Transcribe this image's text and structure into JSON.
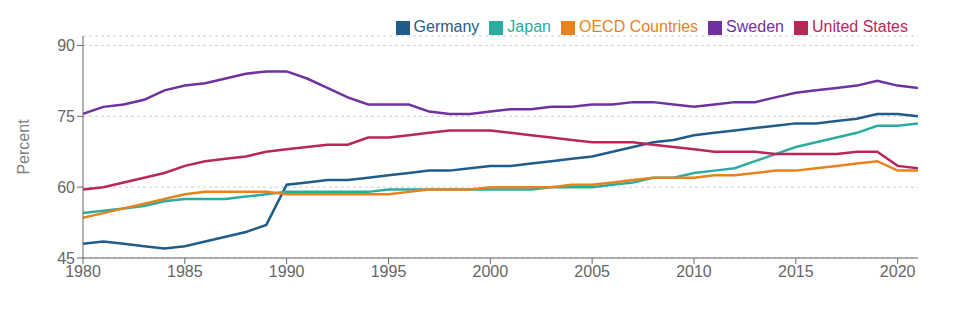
{
  "chart_data": {
    "type": "line",
    "ylabel": "Percent",
    "x": [
      1980,
      1981,
      1982,
      1983,
      1984,
      1985,
      1986,
      1987,
      1988,
      1989,
      1990,
      1991,
      1992,
      1993,
      1994,
      1995,
      1996,
      1997,
      1998,
      1999,
      2000,
      2001,
      2002,
      2003,
      2004,
      2005,
      2006,
      2007,
      2008,
      2009,
      2010,
      2011,
      2012,
      2013,
      2014,
      2015,
      2016,
      2017,
      2018,
      2019,
      2020,
      2021
    ],
    "series": [
      {
        "name": "Germany",
        "color": "#1f5c8b",
        "values": [
          48.0,
          48.5,
          48.0,
          47.5,
          47.0,
          47.5,
          48.5,
          49.5,
          50.5,
          52.0,
          60.5,
          61.0,
          61.5,
          61.5,
          62.0,
          62.5,
          63.0,
          63.5,
          63.5,
          64.0,
          64.5,
          64.5,
          65.0,
          65.5,
          66.0,
          66.5,
          67.5,
          68.5,
          69.5,
          70.0,
          71.0,
          71.5,
          72.0,
          72.5,
          73.0,
          73.5,
          73.5,
          74.0,
          74.5,
          75.5,
          75.5,
          75.0
        ]
      },
      {
        "name": "Japan",
        "color": "#2aada0",
        "values": [
          54.5,
          55.0,
          55.5,
          56.0,
          57.0,
          57.5,
          57.5,
          57.5,
          58.0,
          58.5,
          59.0,
          59.0,
          59.0,
          59.0,
          59.0,
          59.5,
          59.5,
          59.5,
          59.5,
          59.5,
          59.5,
          59.5,
          59.5,
          60.0,
          60.0,
          60.0,
          60.5,
          61.0,
          62.0,
          62.0,
          63.0,
          63.5,
          64.0,
          65.5,
          67.0,
          68.5,
          69.5,
          70.5,
          71.5,
          73.0,
          73.0,
          73.5
        ]
      },
      {
        "name": "Sweden",
        "color": "#7030a0",
        "values": [
          75.5,
          77.0,
          77.5,
          78.5,
          80.5,
          81.5,
          82.0,
          83.0,
          84.0,
          84.5,
          84.5,
          83.0,
          81.0,
          79.0,
          77.5,
          77.5,
          77.5,
          76.0,
          75.5,
          75.5,
          76.0,
          76.5,
          76.5,
          77.0,
          77.0,
          77.5,
          77.5,
          78.0,
          78.0,
          77.5,
          77.0,
          77.5,
          78.0,
          78.0,
          79.0,
          80.0,
          80.5,
          81.0,
          81.5,
          82.5,
          81.5,
          81.0
        ]
      },
      {
        "name": "United States",
        "color": "#b8265a",
        "values": [
          59.5,
          60.0,
          61.0,
          62.0,
          63.0,
          64.5,
          65.5,
          66.0,
          66.5,
          67.5,
          68.0,
          68.5,
          69.0,
          69.0,
          70.5,
          70.5,
          71.0,
          71.5,
          72.0,
          72.0,
          72.0,
          71.5,
          71.0,
          70.5,
          70.0,
          69.5,
          69.5,
          69.5,
          69.0,
          68.5,
          68.0,
          67.5,
          67.5,
          67.5,
          67.0,
          67.0,
          67.0,
          67.0,
          67.5,
          67.5,
          64.5,
          64.0
        ]
      },
      {
        "name": "OECD Countries",
        "color": "#e8821e",
        "values": [
          53.5,
          54.5,
          55.5,
          56.5,
          57.5,
          58.5,
          59.0,
          59.0,
          59.0,
          59.0,
          58.5,
          58.5,
          58.5,
          58.5,
          58.5,
          58.5,
          59.0,
          59.5,
          59.5,
          59.5,
          60.0,
          60.0,
          60.0,
          60.0,
          60.5,
          60.5,
          61.0,
          61.5,
          62.0,
          62.0,
          62.0,
          62.5,
          62.5,
          63.0,
          63.5,
          63.5,
          64.0,
          64.5,
          65.0,
          65.5,
          63.5,
          63.5
        ]
      }
    ],
    "xlim": [
      1980,
      2021
    ],
    "ylim": [
      45,
      92
    ],
    "xticks": [
      1980,
      1985,
      1990,
      1995,
      2000,
      2005,
      2010,
      2015,
      2020
    ],
    "yticks": [
      45,
      60,
      75,
      90
    ],
    "grid": true,
    "legend": "upper right"
  }
}
